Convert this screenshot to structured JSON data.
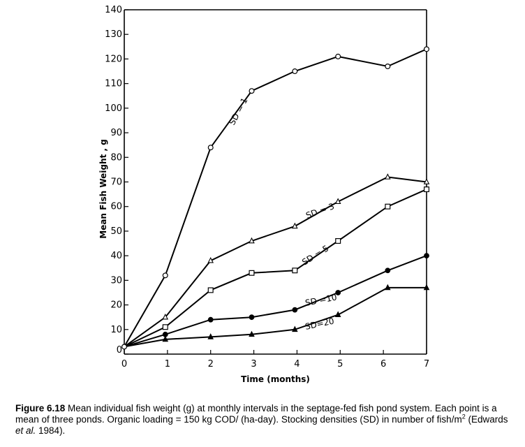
{
  "chart_data": {
    "type": "line",
    "x": [
      0,
      1,
      2,
      3,
      4,
      5,
      6,
      7
    ],
    "x_ticks": [
      "0",
      "1",
      "2",
      "3",
      "4",
      "5",
      "6",
      "7"
    ],
    "y_ticks": [
      "0",
      "10",
      "20",
      "30",
      "40",
      "50",
      "60",
      "70",
      "80",
      "90",
      "100",
      "110",
      "120",
      "130",
      "140"
    ],
    "xlim": [
      0,
      7
    ],
    "ylim": [
      0,
      140
    ],
    "xlabel": "Time (months)",
    "ylabel": "Mean Fish Weight , g",
    "series": [
      {
        "name": "SD = 1",
        "marker": "open-circle",
        "points": [
          [
            0,
            3
          ],
          [
            0.95,
            32
          ],
          [
            2.0,
            84
          ],
          [
            2.95,
            107
          ],
          [
            3.95,
            115
          ],
          [
            4.95,
            121
          ],
          [
            6.1,
            117
          ],
          [
            7.0,
            124
          ]
        ]
      },
      {
        "name": "SD = 3",
        "marker": "open-triangle",
        "points": [
          [
            0,
            3
          ],
          [
            0.95,
            15
          ],
          [
            2.0,
            38
          ],
          [
            2.95,
            46
          ],
          [
            3.95,
            52
          ],
          [
            4.95,
            62
          ],
          [
            6.1,
            72
          ],
          [
            7.0,
            70
          ]
        ]
      },
      {
        "name": "SD = 5",
        "marker": "open-square",
        "points": [
          [
            0,
            3
          ],
          [
            0.95,
            11
          ],
          [
            2.0,
            26
          ],
          [
            2.95,
            33
          ],
          [
            3.95,
            34
          ],
          [
            4.95,
            46
          ],
          [
            6.1,
            60
          ],
          [
            7.0,
            67
          ]
        ]
      },
      {
        "name": "SD =10",
        "marker": "filled-circle",
        "points": [
          [
            0,
            3
          ],
          [
            0.95,
            8
          ],
          [
            2.0,
            14
          ],
          [
            2.95,
            15
          ],
          [
            3.95,
            18
          ],
          [
            4.95,
            25
          ],
          [
            6.1,
            34
          ],
          [
            7.0,
            40
          ]
        ]
      },
      {
        "name": "SD=20",
        "marker": "filled-triangle",
        "points": [
          [
            0,
            3
          ],
          [
            0.95,
            6
          ],
          [
            2.0,
            7
          ],
          [
            2.95,
            8
          ],
          [
            3.95,
            10
          ],
          [
            4.95,
            16
          ],
          [
            6.1,
            27
          ],
          [
            7.0,
            27
          ]
        ]
      }
    ],
    "grid": false,
    "legend": "inline labels along lines"
  },
  "caption": {
    "label": "Figure 6.18",
    "text_before_italic": " Mean individual fish weight (g) at monthly intervals in the septage-fed fish pond system. Each point is a mean of three ponds. Organic loading = 150 kg COD/ (ha-day). Stocking densities (SD) in number of fish/m",
    "superscript": "2",
    "text_middle": " (Edwards ",
    "italic": "et al.",
    "text_after_italic": " 1984)."
  }
}
